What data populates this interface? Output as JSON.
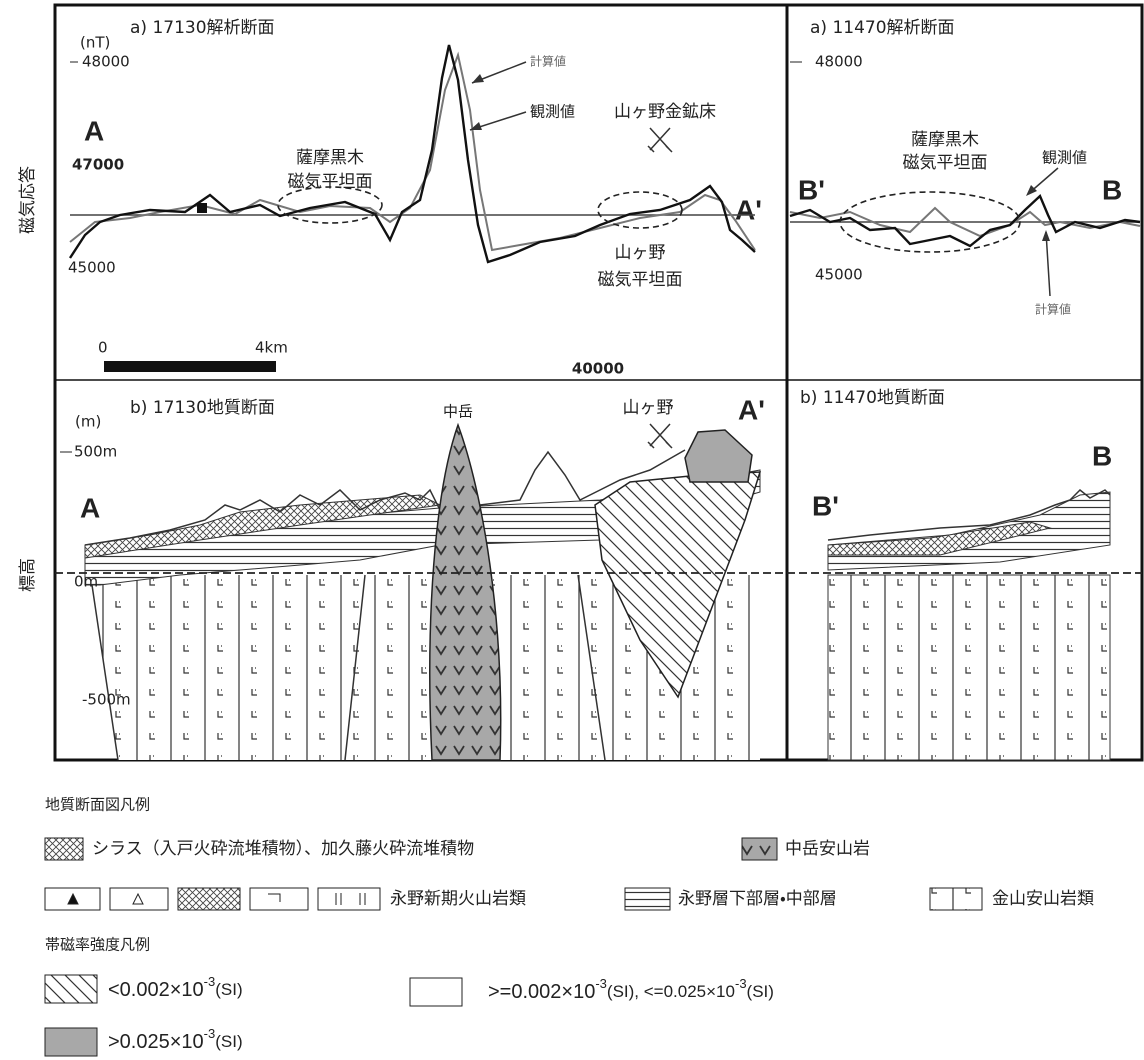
{
  "y_axis_labels": {
    "magnetic": "磁気応答",
    "elevation": "標高"
  },
  "panel_a_17130": {
    "title": "a) 17130解析断面",
    "unit": "(nT)",
    "ticks": [
      "48000",
      "47000",
      "45000"
    ],
    "end_left": "A",
    "end_right": "A'",
    "flat_zone_1": [
      "薩摩黒木",
      "磁気平坦面"
    ],
    "mine": "山ヶ野金鉱床",
    "calc_label": "計算値",
    "obs_label": "観測値",
    "flat_zone_2": [
      "山ヶ野",
      "磁気平坦面"
    ],
    "scale_start": "0",
    "scale_end": "4km",
    "x_marker": "40000"
  },
  "panel_a_11470": {
    "title": "a) 11470解析断面",
    "ticks": [
      "48000",
      "45000"
    ],
    "end_left": "B'",
    "end_right": "B",
    "flat_zone": [
      "薩摩黒木",
      "磁気平坦面"
    ],
    "obs_label": "観測値",
    "calc_label": "計算値"
  },
  "panel_b_17130": {
    "title": "b) 17130地質断面",
    "unit": "(m)",
    "ticks": [
      "500m",
      "0m",
      "-500m"
    ],
    "peak": "中岳",
    "mine": "山ヶ野",
    "end_left": "A",
    "end_right": "A'"
  },
  "panel_b_11470": {
    "title": "b) 11470地質断面",
    "end_left": "B'",
    "end_right": "B"
  },
  "geology_legend": {
    "title": "地質断面図凡例",
    "items": [
      "シラス（入戸火砕流堆積物）、加久藤火砕流堆積物",
      "中岳安山岩",
      "永野新期火山岩類",
      "永野層下部層・中部層",
      "金山安山岩類"
    ]
  },
  "susceptibility_legend": {
    "title": "帯磁率強度凡例",
    "items": [
      {
        "prefix": "<0.002×10",
        "exponent": "-3",
        "suffix": "(SI)"
      },
      {
        "prefix": ">=0.002×10",
        "exponent": "-3",
        "suffix": "(SI), <=0.025×10"
      },
      {
        "prefix": ">0.025×10",
        "exponent": "-3",
        "suffix": "(SI)"
      }
    ],
    "item2_exponent": "-3",
    "item2_tail": "(SI)"
  }
}
